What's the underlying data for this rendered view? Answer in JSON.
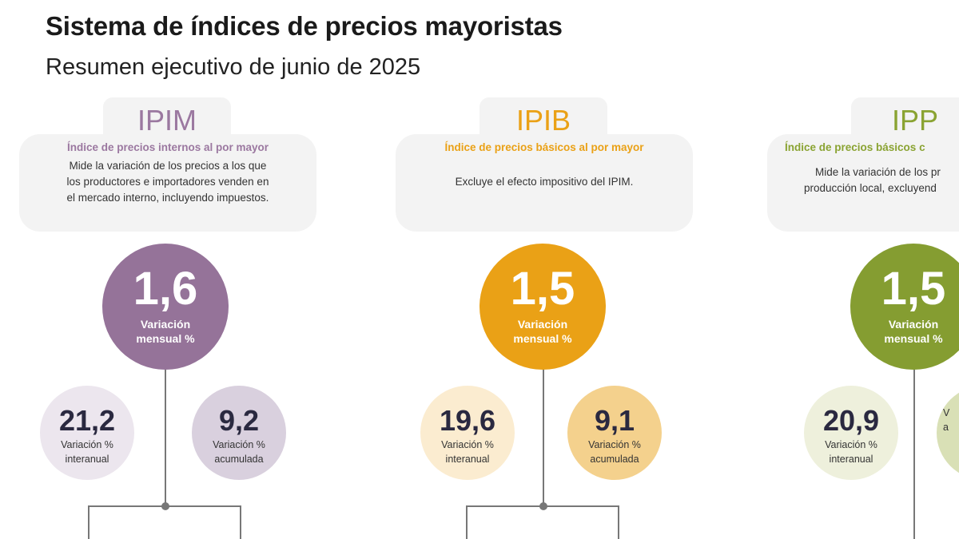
{
  "header": {
    "title": "Sistema de índices de precios mayoristas",
    "subtitle": "Resumen ejecutivo de junio de 2025"
  },
  "indices": [
    {
      "code": "IPIM",
      "name": "Índice de precios internos al por mayor",
      "desc_lines": [
        "Mide la variación de los precios a los que",
        "los productores e importadores venden en",
        "el mercado interno, incluyendo impuestos."
      ],
      "monthly": "1,6",
      "monthly_label": [
        "Variación",
        "mensual %"
      ],
      "yoy": "21,2",
      "yoy_label": [
        "Variación %",
        "interanual"
      ],
      "ytd": "9,2",
      "ytd_label": [
        "Variación %",
        "acumulada"
      ],
      "colors": {
        "accent": "#9b78a0",
        "big": "#957399",
        "small1": "#ece6ee",
        "small2": "#d9d0de"
      }
    },
    {
      "code": "IPIB",
      "name": "Índice de precios básicos al por mayor",
      "desc_lines": [
        "Excluye el efecto impositivo del IPIM."
      ],
      "monthly": "1,5",
      "monthly_label": [
        "Variación",
        "mensual %"
      ],
      "yoy": "19,6",
      "yoy_label": [
        "Variación %",
        "interanual"
      ],
      "ytd": "9,1",
      "ytd_label": [
        "Variación %",
        "acumulada"
      ],
      "colors": {
        "accent": "#eaa116",
        "big": "#eaa116",
        "small1": "#fbecd0",
        "small2": "#f4d18d"
      }
    },
    {
      "code": "IPP",
      "name": "Índice de precios básicos c",
      "desc_lines": [
        "Mide la variación de los pr",
        "producción local, excluyend"
      ],
      "monthly": "1,5",
      "monthly_label": [
        "Variación",
        "mensual %"
      ],
      "yoy": "20,9",
      "yoy_label": [
        "Variación %",
        "interanual"
      ],
      "ytd": "",
      "ytd_label": [
        "V",
        "a"
      ],
      "colors": {
        "accent": "#8aa332",
        "big": "#859d31",
        "small1": "#eef0dc",
        "small2": "#d9e0b6"
      }
    }
  ]
}
